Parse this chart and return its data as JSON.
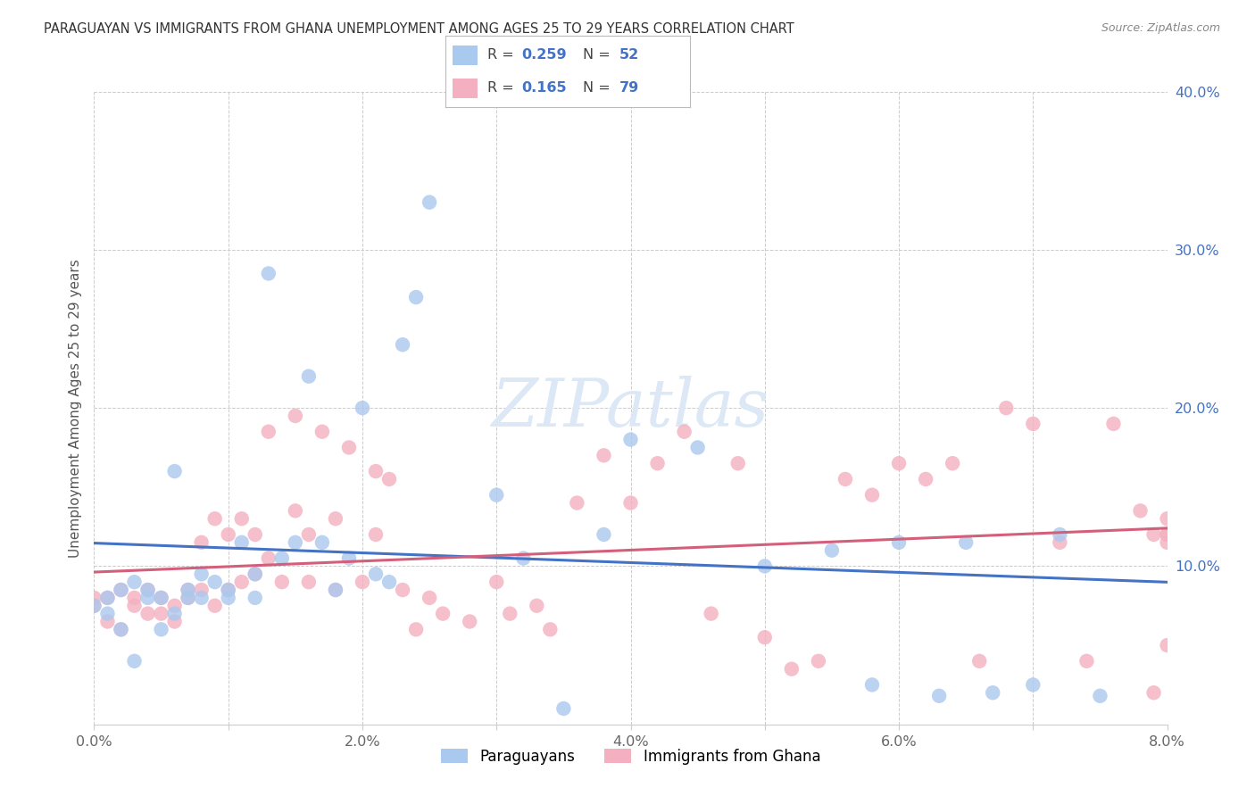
{
  "title": "PARAGUAYAN VS IMMIGRANTS FROM GHANA UNEMPLOYMENT AMONG AGES 25 TO 29 YEARS CORRELATION CHART",
  "source": "Source: ZipAtlas.com",
  "ylabel": "Unemployment Among Ages 25 to 29 years",
  "xlim": [
    0.0,
    0.08
  ],
  "ylim": [
    0.0,
    0.4
  ],
  "xticks": [
    0.0,
    0.01,
    0.02,
    0.03,
    0.04,
    0.05,
    0.06,
    0.07,
    0.08
  ],
  "xticklabels": [
    "0.0%",
    "",
    "2.0%",
    "",
    "4.0%",
    "",
    "6.0%",
    "",
    "8.0%"
  ],
  "yticks": [
    0.0,
    0.1,
    0.2,
    0.3,
    0.4
  ],
  "yticklabels_right": [
    "",
    "10.0%",
    "20.0%",
    "30.0%",
    "40.0%"
  ],
  "series1_color": "#aac9ee",
  "series2_color": "#f4b0c0",
  "line1_color": "#4472c4",
  "line2_color": "#d45f7a",
  "watermark_color": "#dce8f5",
  "title_color": "#333333",
  "source_color": "#888888",
  "tick_color_right": "#4472c4",
  "tick_color_bottom": "#666666",
  "grid_color": "#cccccc",
  "R1": "0.259",
  "N1": "52",
  "R2": "0.165",
  "N2": "79",
  "paraguayans_x": [
    0.0,
    0.001,
    0.001,
    0.002,
    0.002,
    0.003,
    0.003,
    0.004,
    0.004,
    0.005,
    0.005,
    0.006,
    0.006,
    0.007,
    0.007,
    0.008,
    0.008,
    0.009,
    0.01,
    0.01,
    0.011,
    0.012,
    0.012,
    0.013,
    0.014,
    0.015,
    0.016,
    0.017,
    0.018,
    0.019,
    0.02,
    0.021,
    0.022,
    0.023,
    0.024,
    0.025,
    0.03,
    0.032,
    0.035,
    0.038,
    0.04,
    0.045,
    0.05,
    0.055,
    0.058,
    0.06,
    0.063,
    0.065,
    0.067,
    0.07,
    0.072,
    0.075
  ],
  "paraguayans_y": [
    0.075,
    0.08,
    0.07,
    0.085,
    0.06,
    0.04,
    0.09,
    0.08,
    0.085,
    0.06,
    0.08,
    0.07,
    0.16,
    0.08,
    0.085,
    0.08,
    0.095,
    0.09,
    0.08,
    0.085,
    0.115,
    0.08,
    0.095,
    0.285,
    0.105,
    0.115,
    0.22,
    0.115,
    0.085,
    0.105,
    0.2,
    0.095,
    0.09,
    0.24,
    0.27,
    0.33,
    0.145,
    0.105,
    0.01,
    0.12,
    0.18,
    0.175,
    0.1,
    0.11,
    0.025,
    0.115,
    0.018,
    0.115,
    0.02,
    0.025,
    0.12,
    0.018
  ],
  "ghana_x": [
    0.0,
    0.0,
    0.001,
    0.001,
    0.002,
    0.002,
    0.003,
    0.003,
    0.004,
    0.004,
    0.005,
    0.005,
    0.006,
    0.006,
    0.007,
    0.007,
    0.008,
    0.008,
    0.009,
    0.009,
    0.01,
    0.01,
    0.011,
    0.011,
    0.012,
    0.012,
    0.013,
    0.013,
    0.014,
    0.015,
    0.015,
    0.016,
    0.016,
    0.017,
    0.018,
    0.018,
    0.019,
    0.02,
    0.021,
    0.021,
    0.022,
    0.023,
    0.024,
    0.025,
    0.026,
    0.028,
    0.03,
    0.031,
    0.033,
    0.034,
    0.036,
    0.038,
    0.04,
    0.042,
    0.044,
    0.046,
    0.048,
    0.05,
    0.052,
    0.054,
    0.056,
    0.058,
    0.06,
    0.062,
    0.064,
    0.066,
    0.068,
    0.07,
    0.072,
    0.074,
    0.076,
    0.078,
    0.079,
    0.079,
    0.08,
    0.08,
    0.08,
    0.08,
    0.08
  ],
  "ghana_y": [
    0.075,
    0.08,
    0.065,
    0.08,
    0.06,
    0.085,
    0.075,
    0.08,
    0.07,
    0.085,
    0.07,
    0.08,
    0.065,
    0.075,
    0.08,
    0.085,
    0.085,
    0.115,
    0.075,
    0.13,
    0.085,
    0.12,
    0.09,
    0.13,
    0.095,
    0.12,
    0.105,
    0.185,
    0.09,
    0.135,
    0.195,
    0.09,
    0.12,
    0.185,
    0.085,
    0.13,
    0.175,
    0.09,
    0.12,
    0.16,
    0.155,
    0.085,
    0.06,
    0.08,
    0.07,
    0.065,
    0.09,
    0.07,
    0.075,
    0.06,
    0.14,
    0.17,
    0.14,
    0.165,
    0.185,
    0.07,
    0.165,
    0.055,
    0.035,
    0.04,
    0.155,
    0.145,
    0.165,
    0.155,
    0.165,
    0.04,
    0.2,
    0.19,
    0.115,
    0.04,
    0.19,
    0.135,
    0.02,
    0.12,
    0.12,
    0.12,
    0.05,
    0.115,
    0.13
  ]
}
